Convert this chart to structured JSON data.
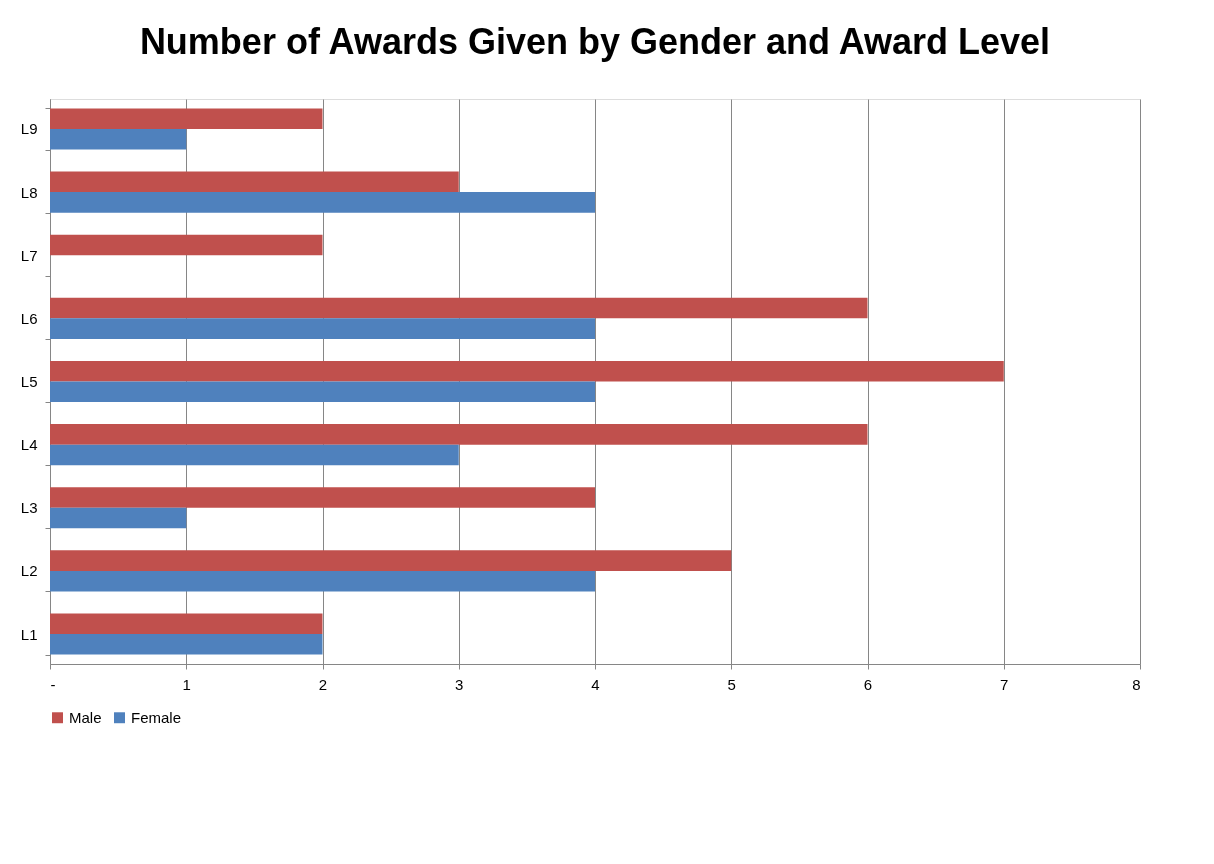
{
  "chart_data": {
    "type": "bar",
    "orientation": "horizontal",
    "title": "Number of Awards Given by Gender and Award Level",
    "categories": [
      "L9",
      "L8",
      "L7",
      "L6",
      "L5",
      "L4",
      "L3",
      "L2",
      "L1"
    ],
    "series": [
      {
        "name": "Male",
        "color": "#c0504d",
        "values": [
          2,
          3,
          2,
          6,
          7,
          6,
          4,
          5,
          2
        ]
      },
      {
        "name": "Female",
        "color": "#4f81bd",
        "values": [
          1,
          4,
          null,
          4,
          4,
          3,
          1,
          4,
          2
        ]
      }
    ],
    "xlim": [
      0,
      8
    ],
    "xticks": [
      {
        "value": 0,
        "label": "-"
      },
      1,
      2,
      3,
      4,
      5,
      6,
      7,
      8
    ],
    "grid": "x",
    "legend": "bottom"
  }
}
